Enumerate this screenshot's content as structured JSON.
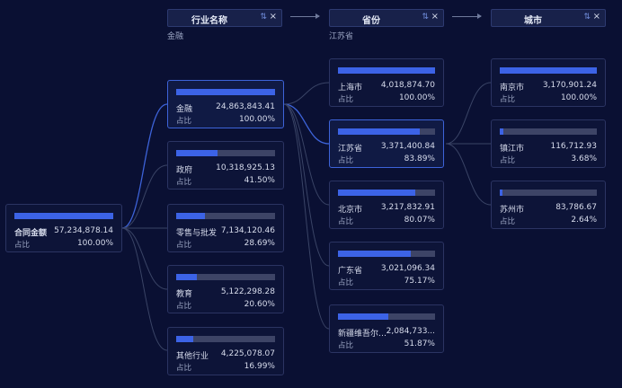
{
  "columns": [
    {
      "title": "行业名称",
      "sort_icon": "⇅",
      "close_icon": "×",
      "crumb": "金融"
    },
    {
      "title": "省份",
      "sort_icon": "⇅",
      "close_icon": "×",
      "crumb": "江苏省"
    },
    {
      "title": "城市",
      "sort_icon": "⇅",
      "close_icon": "×",
      "crumb": ""
    }
  ],
  "percent_label": "占比",
  "root": {
    "label": "合同金额",
    "value": "57,234,878.14",
    "percent": "100.00%",
    "fraction": 1.0
  },
  "industries": [
    {
      "label": "金融",
      "value": "24,863,843.41",
      "percent": "100.00%",
      "fraction": 1.0
    },
    {
      "label": "政府",
      "value": "10,318,925.13",
      "percent": "41.50%",
      "fraction": 0.415
    },
    {
      "label": "零售与批发",
      "value": "7,134,120.46",
      "percent": "28.69%",
      "fraction": 0.2869
    },
    {
      "label": "教育",
      "value": "5,122,298.28",
      "percent": "20.60%",
      "fraction": 0.206
    },
    {
      "label": "其他行业",
      "value": "4,225,078.07",
      "percent": "16.99%",
      "fraction": 0.1699
    }
  ],
  "provinces": [
    {
      "label": "上海市",
      "value": "4,018,874.70",
      "percent": "100.00%",
      "fraction": 1.0
    },
    {
      "label": "江苏省",
      "value": "3,371,400.84",
      "percent": "83.89%",
      "fraction": 0.8389
    },
    {
      "label": "北京市",
      "value": "3,217,832.91",
      "percent": "80.07%",
      "fraction": 0.8007
    },
    {
      "label": "广东省",
      "value": "3,021,096.34",
      "percent": "75.17%",
      "fraction": 0.7517
    },
    {
      "label": "新疆维吾尔自...",
      "value": "2,084,733...",
      "percent": "51.87%",
      "fraction": 0.5187
    }
  ],
  "cities": [
    {
      "label": "南京市",
      "value": "3,170,901.24",
      "percent": "100.00%",
      "fraction": 1.0
    },
    {
      "label": "镇江市",
      "value": "116,712.93",
      "percent": "3.68%",
      "fraction": 0.0368
    },
    {
      "label": "苏州市",
      "value": "83,786.67",
      "percent": "2.64%",
      "fraction": 0.0264
    }
  ],
  "colors": {
    "background": "#0a1033",
    "bar_fill": "#3c63e6",
    "bar_track": "#3d4466",
    "selected_link": "#3d63d9",
    "link": "#3a4466"
  }
}
